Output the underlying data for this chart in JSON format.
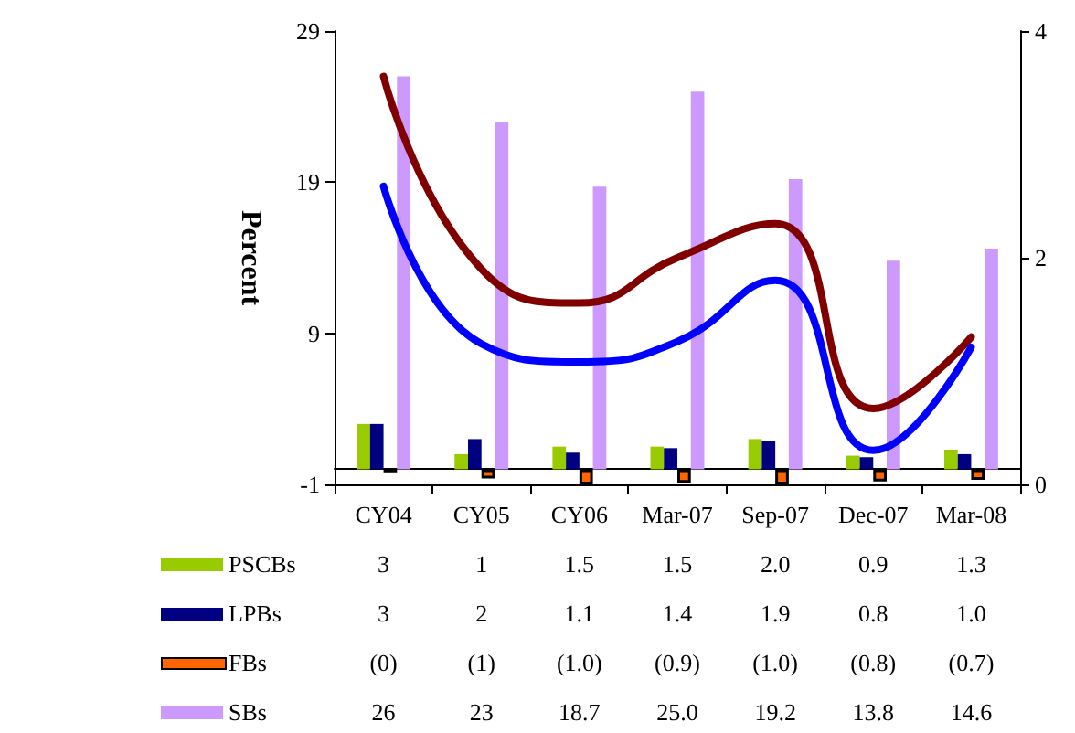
{
  "chart_data": {
    "type": "bar",
    "ylabel": "Percent",
    "categories": [
      "CY04",
      "CY05",
      "CY06",
      "Mar-07",
      "Sep-07",
      "Dec-07",
      "Mar-08"
    ],
    "series": [
      {
        "name": "PSCBs",
        "color": "#99cc00",
        "values": [
          3,
          1,
          1.5,
          1.5,
          2.0,
          0.9,
          1.3
        ],
        "value_labels": [
          "3",
          "1",
          "1.5",
          "1.5",
          "2.0",
          "0.9",
          "1.3"
        ]
      },
      {
        "name": "LPBs",
        "color": "#000080",
        "values": [
          3,
          2,
          1.1,
          1.4,
          1.9,
          0.8,
          1.0
        ],
        "value_labels": [
          "3",
          "2",
          "1.1",
          "1.4",
          "1.9",
          "0.8",
          "1.0"
        ]
      },
      {
        "name": "FBs",
        "color": "#ff6600",
        "values": [
          -0.2,
          -0.6,
          -1.0,
          -0.9,
          -1.0,
          -0.8,
          -0.7
        ],
        "value_labels": [
          "(0)",
          "(1)",
          "(1.0)",
          "(0.9)",
          "(1.0)",
          "(0.8)",
          "(0.7)"
        ]
      },
      {
        "name": "SBs",
        "color": "#cc99ff",
        "values": [
          26,
          23,
          18.7,
          25.0,
          19.2,
          13.8,
          14.6
        ],
        "value_labels": [
          "26",
          "23",
          "18.7",
          "25.0",
          "19.2",
          "13.8",
          "14.6"
        ]
      },
      {
        "type": "line",
        "axis": "y2",
        "color": "#800000",
        "values": [
          3.6,
          1.9,
          1.6,
          2.0,
          2.3,
          0.67,
          1.3
        ]
      },
      {
        "type": "line",
        "axis": "y2",
        "color": "#0000ff",
        "values": [
          2.63,
          1.24,
          1.08,
          1.26,
          1.8,
          0.3,
          1.21
        ]
      }
    ],
    "ylim": [
      -1,
      29
    ],
    "yticks": [
      -1,
      9,
      19,
      29
    ],
    "y2lim": [
      0,
      4
    ],
    "y2ticks": [
      0,
      2,
      4
    ],
    "grid": false,
    "legend": "bottom",
    "marker": "none"
  }
}
